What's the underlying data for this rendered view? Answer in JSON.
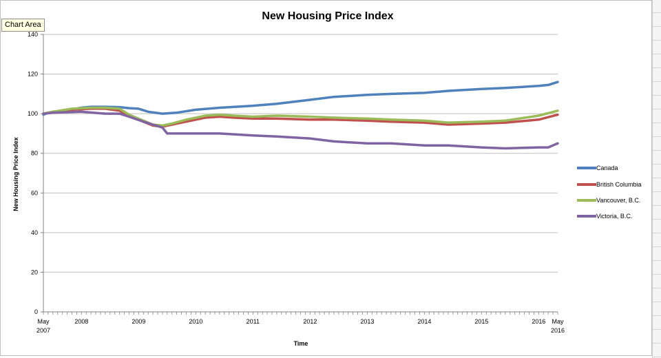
{
  "tooltip": "Chart Area",
  "chart_data": {
    "type": "line",
    "title": "New Housing Price Index",
    "xlabel": "Time",
    "ylabel": "New Housing Price Index",
    "ylim": [
      0,
      140
    ],
    "yticks": [
      0,
      20,
      40,
      60,
      80,
      100,
      120,
      140
    ],
    "xlim": [
      "2007-05",
      "2016-05"
    ],
    "xtick_labels": [
      {
        "date": "2007-05",
        "line1": "May",
        "line2": "2007"
      },
      {
        "date": "2008-01",
        "line1": "2008",
        "line2": ""
      },
      {
        "date": "2009-01",
        "line1": "2009",
        "line2": ""
      },
      {
        "date": "2010-01",
        "line1": "2010",
        "line2": ""
      },
      {
        "date": "2011-01",
        "line1": "2011",
        "line2": ""
      },
      {
        "date": "2012-01",
        "line1": "2012",
        "line2": ""
      },
      {
        "date": "2013-01",
        "line1": "2013",
        "line2": ""
      },
      {
        "date": "2014-01",
        "line1": "2014",
        "line2": ""
      },
      {
        "date": "2015-01",
        "line1": "2015",
        "line2": ""
      },
      {
        "date": "2016-01",
        "line1": "2016",
        "line2": ""
      },
      {
        "date": "2016-05",
        "line1": "May",
        "line2": "2016"
      }
    ],
    "grid": true,
    "legend_position": "right",
    "series": [
      {
        "name": "Canada",
        "color": "#4f81bd",
        "points": [
          [
            "2007-05",
            99.5
          ],
          [
            "2007-06",
            100.5
          ],
          [
            "2007-09",
            101.5
          ],
          [
            "2008-01",
            103.0
          ],
          [
            "2008-03",
            103.5
          ],
          [
            "2008-06",
            103.5
          ],
          [
            "2008-09",
            103.3
          ],
          [
            "2008-11",
            102.8
          ],
          [
            "2009-01",
            102.5
          ],
          [
            "2009-03",
            101.0
          ],
          [
            "2009-06",
            100.0
          ],
          [
            "2009-09",
            100.5
          ],
          [
            "2010-01",
            102.0
          ],
          [
            "2010-06",
            103.0
          ],
          [
            "2011-01",
            104.0
          ],
          [
            "2011-06",
            105.0
          ],
          [
            "2012-01",
            107.0
          ],
          [
            "2012-06",
            108.5
          ],
          [
            "2013-01",
            109.5
          ],
          [
            "2013-06",
            110.0
          ],
          [
            "2014-01",
            110.5
          ],
          [
            "2014-06",
            111.5
          ],
          [
            "2015-01",
            112.5
          ],
          [
            "2015-06",
            113.0
          ],
          [
            "2016-01",
            114.0
          ],
          [
            "2016-03",
            114.5
          ],
          [
            "2016-05",
            116.0
          ]
        ]
      },
      {
        "name": "British Columbia",
        "color": "#c0504d",
        "points": [
          [
            "2007-05",
            100.0
          ],
          [
            "2007-07",
            101.0
          ],
          [
            "2007-11",
            102.0
          ],
          [
            "2008-03",
            102.5
          ],
          [
            "2008-06",
            102.5
          ],
          [
            "2008-09",
            101.5
          ],
          [
            "2008-11",
            99.0
          ],
          [
            "2009-02",
            96.0
          ],
          [
            "2009-04",
            94.0
          ],
          [
            "2009-06",
            93.5
          ],
          [
            "2009-08",
            94.5
          ],
          [
            "2009-11",
            96.0
          ],
          [
            "2010-03",
            98.0
          ],
          [
            "2010-06",
            98.5
          ],
          [
            "2010-09",
            98.0
          ],
          [
            "2011-01",
            97.5
          ],
          [
            "2011-06",
            97.5
          ],
          [
            "2012-01",
            97.0
          ],
          [
            "2012-06",
            97.0
          ],
          [
            "2013-01",
            96.5
          ],
          [
            "2013-06",
            96.0
          ],
          [
            "2014-01",
            95.5
          ],
          [
            "2014-06",
            94.5
          ],
          [
            "2015-01",
            95.0
          ],
          [
            "2015-06",
            95.5
          ],
          [
            "2016-01",
            97.0
          ],
          [
            "2016-05",
            99.5
          ]
        ]
      },
      {
        "name": "Vancouver, B.C.",
        "color": "#9bbb59",
        "points": [
          [
            "2007-05",
            100.0
          ],
          [
            "2007-07",
            101.0
          ],
          [
            "2007-11",
            102.5
          ],
          [
            "2008-03",
            103.0
          ],
          [
            "2008-06",
            103.0
          ],
          [
            "2008-09",
            102.5
          ],
          [
            "2008-11",
            99.5
          ],
          [
            "2009-02",
            96.5
          ],
          [
            "2009-04",
            94.5
          ],
          [
            "2009-06",
            94.0
          ],
          [
            "2009-08",
            95.0
          ],
          [
            "2009-11",
            97.0
          ],
          [
            "2010-03",
            99.0
          ],
          [
            "2010-06",
            99.5
          ],
          [
            "2010-09",
            99.0
          ],
          [
            "2011-01",
            98.5
          ],
          [
            "2011-06",
            99.0
          ],
          [
            "2012-01",
            98.5
          ],
          [
            "2012-06",
            98.0
          ],
          [
            "2013-01",
            97.5
          ],
          [
            "2013-06",
            97.0
          ],
          [
            "2014-01",
            96.5
          ],
          [
            "2014-06",
            95.5
          ],
          [
            "2015-01",
            96.0
          ],
          [
            "2015-06",
            96.5
          ],
          [
            "2016-01",
            99.0
          ],
          [
            "2016-05",
            101.5
          ]
        ]
      },
      {
        "name": "Victoria, B.C.",
        "color": "#8064a2",
        "points": [
          [
            "2007-05",
            100.0
          ],
          [
            "2007-07",
            100.5
          ],
          [
            "2008-01",
            101.0
          ],
          [
            "2008-06",
            100.0
          ],
          [
            "2008-09",
            100.0
          ],
          [
            "2008-11",
            98.5
          ],
          [
            "2009-02",
            96.0
          ],
          [
            "2009-04",
            94.5
          ],
          [
            "2009-06",
            93.0
          ],
          [
            "2009-07",
            90.0
          ],
          [
            "2009-12",
            90.0
          ],
          [
            "2010-06",
            90.0
          ],
          [
            "2011-01",
            89.0
          ],
          [
            "2011-06",
            88.5
          ],
          [
            "2012-01",
            87.5
          ],
          [
            "2012-06",
            86.0
          ],
          [
            "2013-01",
            85.0
          ],
          [
            "2013-06",
            85.0
          ],
          [
            "2014-01",
            84.0
          ],
          [
            "2014-06",
            84.0
          ],
          [
            "2015-01",
            83.0
          ],
          [
            "2015-06",
            82.5
          ],
          [
            "2016-01",
            83.0
          ],
          [
            "2016-03",
            83.0
          ],
          [
            "2016-05",
            85.0
          ]
        ]
      }
    ]
  }
}
